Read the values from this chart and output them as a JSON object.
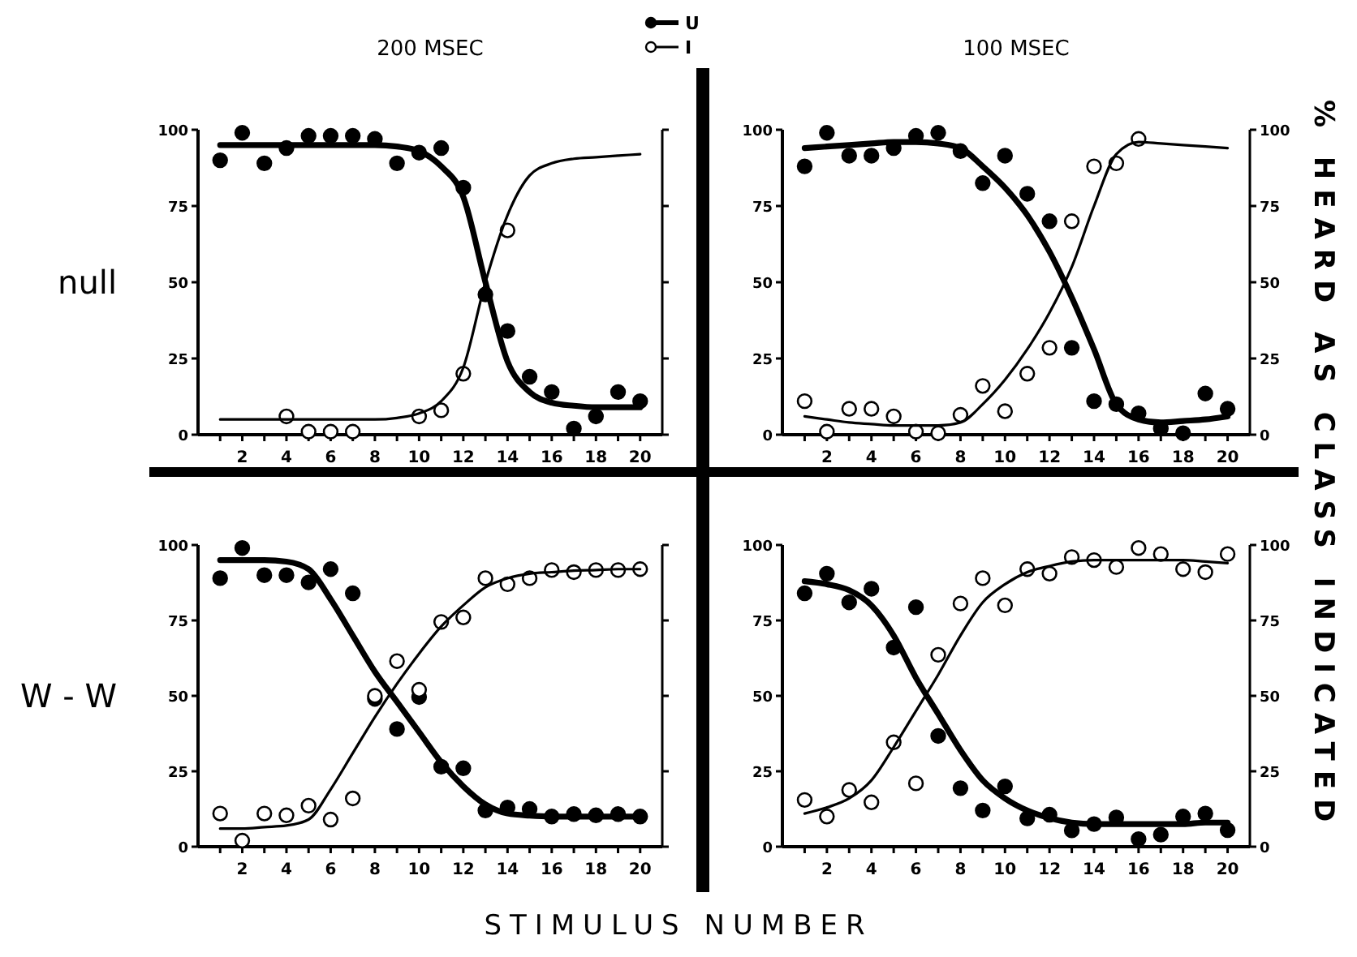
{
  "chart_data": [
    {
      "type": "scatter",
      "title": "200 MSEC",
      "ylabel": "null",
      "legend": "top",
      "xlim": [
        0,
        21
      ],
      "ylim": [
        0,
        100
      ],
      "xticks": [
        {
          "value": 1,
          "label": null
        },
        2,
        {
          "value": 3,
          "label": null
        },
        4,
        {
          "value": 5,
          "label": null
        },
        6,
        {
          "value": 7,
          "label": null
        },
        8,
        {
          "value": 9,
          "label": null
        },
        10,
        {
          "value": 11,
          "label": null
        },
        12,
        {
          "value": 13,
          "label": null
        },
        14,
        {
          "value": 15,
          "label": null
        },
        16,
        {
          "value": 17,
          "label": null
        },
        18,
        {
          "value": 19,
          "label": null
        },
        20
      ],
      "yticks": [
        0,
        25,
        50,
        75,
        100
      ],
      "x": [
        1,
        2,
        3,
        4,
        5,
        6,
        7,
        8,
        9,
        10,
        11,
        12,
        13,
        14,
        15,
        16,
        17,
        18,
        19,
        20
      ],
      "series": [
        {
          "name": "U",
          "marker": "circle",
          "color": "#000000",
          "values": [
            90,
            99,
            89,
            94,
            98,
            98,
            98,
            97,
            89,
            92.5,
            94,
            81,
            46,
            34,
            19,
            14,
            2,
            6,
            14,
            11
          ]
        },
        {
          "name": "I",
          "marker": "circle",
          "color": "#ffffff",
          "values": [
            null,
            null,
            null,
            6,
            1,
            1,
            1,
            null,
            null,
            6,
            8,
            20,
            null,
            67,
            null,
            null,
            null,
            null,
            null,
            null
          ]
        },
        {
          "type": "line",
          "marker": "none",
          "color": "#000000",
          "values": [
            95,
            95,
            95,
            95,
            95,
            95,
            95,
            95,
            94.5,
            93,
            88,
            78,
            50,
            24,
            14,
            10.5,
            9.5,
            9,
            9,
            9
          ]
        },
        {
          "type": "line",
          "marker": "none",
          "color": "#000000",
          "values": [
            5,
            5,
            5,
            5,
            5,
            5,
            5,
            5,
            5.5,
            7,
            11,
            22,
            50,
            72,
            85,
            89,
            90.5,
            91,
            91.5,
            92
          ]
        }
      ]
    },
    {
      "type": "scatter",
      "title": "100 MSEC",
      "y2label": "% HEARD AS CLASS INDICATED",
      "xlim": [
        0,
        21
      ],
      "ylim": [
        0,
        100
      ],
      "y2lim": [
        0,
        100
      ],
      "xticks": [
        {
          "value": 1,
          "label": null
        },
        2,
        {
          "value": 3,
          "label": null
        },
        4,
        {
          "value": 5,
          "label": null
        },
        6,
        {
          "value": 7,
          "label": null
        },
        8,
        {
          "value": 9,
          "label": null
        },
        10,
        {
          "value": 11,
          "label": null
        },
        12,
        {
          "value": 13,
          "label": null
        },
        14,
        {
          "value": 15,
          "label": null
        },
        16,
        {
          "value": 17,
          "label": null
        },
        18,
        {
          "value": 19,
          "label": null
        },
        20
      ],
      "yticks": [
        0,
        25,
        50,
        75,
        100
      ],
      "y2ticks": [
        0,
        25,
        50,
        75,
        100
      ],
      "x": [
        1,
        2,
        3,
        4,
        5,
        6,
        7,
        8,
        9,
        10,
        11,
        12,
        13,
        14,
        15,
        16,
        17,
        18,
        19,
        20
      ],
      "series": [
        {
          "marker": "circle",
          "color": "#000000",
          "values": [
            88,
            99,
            91.5,
            91.5,
            94,
            98,
            99,
            93,
            82.5,
            91.5,
            79,
            70,
            28.5,
            11,
            10,
            7,
            2,
            0.5,
            13.5,
            8.5
          ]
        },
        {
          "marker": "circle",
          "color": "#ffffff",
          "values": [
            11,
            1,
            8.5,
            8.5,
            6,
            1,
            0.5,
            6.5,
            16,
            7.7,
            20,
            28.5,
            70,
            88,
            89,
            97,
            null,
            null,
            null,
            null
          ]
        },
        {
          "type": "line",
          "marker": "none",
          "color": "#000000",
          "values": [
            94,
            94.5,
            95,
            95.5,
            96,
            96,
            95.5,
            94,
            88,
            81,
            72,
            60,
            45,
            28,
            10,
            5,
            4,
            4.5,
            5,
            6
          ]
        },
        {
          "type": "line",
          "marker": "none",
          "color": "#000000",
          "values": [
            6,
            5,
            4,
            3.5,
            3,
            3,
            3,
            4,
            10,
            18,
            28,
            40,
            55,
            75,
            92,
            96,
            95.5,
            95,
            94.5,
            94
          ]
        }
      ]
    },
    {
      "type": "scatter",
      "ylabel": "W - W",
      "xlabel": "STIMULUS NUMBER",
      "xlim": [
        0,
        21
      ],
      "ylim": [
        0,
        100
      ],
      "xticks": [
        {
          "value": 1,
          "label": null
        },
        2,
        {
          "value": 3,
          "label": null
        },
        4,
        {
          "value": 5,
          "label": null
        },
        6,
        {
          "value": 7,
          "label": null
        },
        8,
        {
          "value": 9,
          "label": null
        },
        10,
        {
          "value": 11,
          "label": null
        },
        12,
        {
          "value": 13,
          "label": null
        },
        14,
        {
          "value": 15,
          "label": null
        },
        16,
        {
          "value": 17,
          "label": null
        },
        18,
        {
          "value": 19,
          "label": null
        },
        20
      ],
      "yticks": [
        0,
        25,
        50,
        75,
        100
      ],
      "x": [
        1,
        2,
        3,
        4,
        5,
        6,
        7,
        8,
        9,
        10,
        11,
        12,
        13,
        14,
        15,
        16,
        17,
        18,
        19,
        20
      ],
      "series": [
        {
          "marker": "circle",
          "color": "#000000",
          "values": [
            89,
            99,
            90,
            90,
            87.6,
            92,
            84,
            49,
            39,
            49.6,
            26.5,
            26,
            12,
            13,
            12.5,
            10,
            10.8,
            10.4,
            10.8,
            10
          ]
        },
        {
          "marker": "circle",
          "color": "#ffffff",
          "values": [
            11,
            2,
            11,
            10.4,
            13.6,
            9,
            16,
            50,
            61.5,
            52,
            74.5,
            76,
            89,
            87,
            89,
            91.7,
            91,
            91.7,
            91.7,
            92
          ]
        },
        {
          "type": "line",
          "marker": "none",
          "color": "#000000",
          "values": [
            95,
            95,
            95,
            94.5,
            92,
            82,
            70,
            58,
            48,
            38,
            28,
            20,
            14,
            11,
            10.3,
            10,
            10,
            10,
            10,
            10
          ]
        },
        {
          "type": "line",
          "marker": "none",
          "color": "#000000",
          "values": [
            6,
            6,
            6.5,
            7,
            9,
            19,
            31,
            43,
            54,
            64,
            73,
            80,
            86,
            89,
            90.5,
            91,
            91.5,
            91.7,
            92,
            92
          ]
        }
      ]
    },
    {
      "type": "scatter",
      "xlim": [
        0,
        21
      ],
      "ylim": [
        0,
        100
      ],
      "y2lim": [
        0,
        100
      ],
      "xticks": [
        {
          "value": 1,
          "label": null
        },
        2,
        {
          "value": 3,
          "label": null
        },
        4,
        {
          "value": 5,
          "label": null
        },
        6,
        {
          "value": 7,
          "label": null
        },
        8,
        {
          "value": 9,
          "label": null
        },
        10,
        {
          "value": 11,
          "label": null
        },
        12,
        {
          "value": 13,
          "label": null
        },
        14,
        {
          "value": 15,
          "label": null
        },
        16,
        {
          "value": 17,
          "label": null
        },
        18,
        {
          "value": 19,
          "label": null
        },
        20
      ],
      "yticks": [
        0,
        25,
        50,
        75,
        100
      ],
      "y2ticks": [
        0,
        25,
        50,
        75,
        100
      ],
      "x": [
        1,
        2,
        3,
        4,
        5,
        6,
        7,
        8,
        9,
        10,
        11,
        12,
        13,
        14,
        15,
        16,
        17,
        18,
        19,
        20
      ],
      "series": [
        {
          "marker": "circle",
          "color": "#000000",
          "values": [
            84,
            90.5,
            81,
            85.5,
            66,
            79.4,
            36.7,
            19.4,
            12,
            20,
            9.4,
            10.6,
            5.4,
            7.5,
            9.7,
            2.5,
            4,
            10,
            11,
            5.5
          ]
        },
        {
          "marker": "circle",
          "color": "#ffffff",
          "values": [
            15.5,
            10,
            18.8,
            14.7,
            34.6,
            21,
            63.6,
            80.6,
            89,
            80,
            92,
            90.5,
            96,
            95,
            92.7,
            99,
            97,
            92,
            91,
            97
          ]
        },
        {
          "type": "line",
          "marker": "none",
          "color": "#000000",
          "values": [
            88,
            87,
            85,
            80,
            70,
            56,
            44,
            32,
            22,
            16,
            12,
            9.5,
            8,
            7.5,
            7.5,
            7.5,
            7.5,
            7.5,
            8,
            8
          ]
        },
        {
          "type": "line",
          "marker": "none",
          "color": "#000000",
          "values": [
            11,
            13,
            16,
            22,
            33,
            45,
            57,
            70,
            81,
            87,
            91,
            93,
            94.5,
            95,
            95,
            95,
            95,
            95,
            94.5,
            94
          ]
        }
      ]
    }
  ]
}
